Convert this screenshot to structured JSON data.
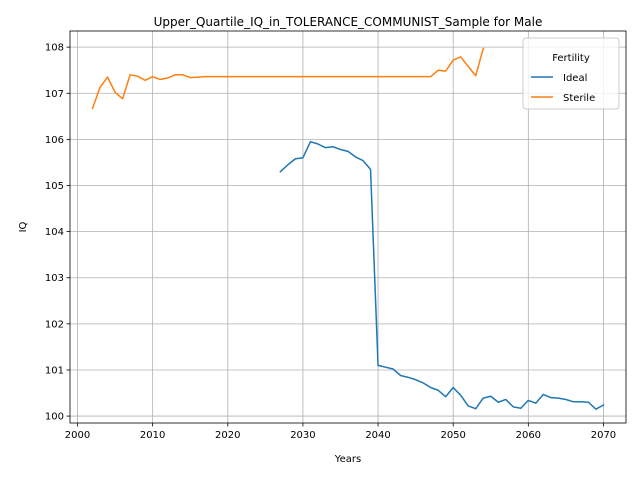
{
  "chart_data": {
    "type": "line",
    "title": "Upper_Quartile_IQ_in_TOLERANCE_COMMUNIST_Sample for Male",
    "xlabel": "Years",
    "ylabel": "IQ",
    "xlim": [
      1999,
      2073
    ],
    "ylim": [
      99.85,
      108.35
    ],
    "xticks": [
      2000,
      2010,
      2020,
      2030,
      2040,
      2050,
      2060,
      2070
    ],
    "yticks": [
      100,
      101,
      102,
      103,
      104,
      105,
      106,
      107,
      108
    ],
    "grid": true,
    "legend": {
      "title": "Fertility",
      "placement": "top-right"
    },
    "series": [
      {
        "name": "Ideal",
        "color": "#1f77b4",
        "x": [
          2027,
          2028,
          2029,
          2030,
          2031,
          2032,
          2033,
          2034,
          2035,
          2036,
          2037,
          2038,
          2039,
          2040,
          2041,
          2042,
          2043,
          2044,
          2045,
          2046,
          2047,
          2048,
          2049,
          2050,
          2051,
          2052,
          2053,
          2054,
          2055,
          2056,
          2057,
          2058,
          2059,
          2060,
          2061,
          2062,
          2063,
          2064,
          2065,
          2066,
          2067,
          2068,
          2069,
          2070
        ],
        "y": [
          105.3,
          105.45,
          105.58,
          105.6,
          105.95,
          105.9,
          105.82,
          105.84,
          105.78,
          105.74,
          105.62,
          105.54,
          105.35,
          101.1,
          101.06,
          101.02,
          100.88,
          100.84,
          100.79,
          100.72,
          100.62,
          100.56,
          100.42,
          100.62,
          100.45,
          100.22,
          100.16,
          100.39,
          100.43,
          100.3,
          100.36,
          100.2,
          100.17,
          100.34,
          100.28,
          100.47,
          100.4,
          100.39,
          100.36,
          100.31,
          100.31,
          100.3,
          100.15,
          100.24
        ]
      },
      {
        "name": "Sterile",
        "color": "#ff7f0e",
        "x": [
          2002,
          2003,
          2004,
          2005,
          2006,
          2007,
          2008,
          2009,
          2010,
          2011,
          2012,
          2013,
          2014,
          2015,
          2016,
          2017,
          2018,
          2019,
          2020,
          2021,
          2022,
          2023,
          2024,
          2025,
          2026,
          2027,
          2028,
          2029,
          2030,
          2031,
          2032,
          2033,
          2034,
          2035,
          2036,
          2037,
          2038,
          2039,
          2040,
          2041,
          2042,
          2043,
          2044,
          2045,
          2046,
          2047,
          2048,
          2049,
          2050,
          2051,
          2052,
          2053,
          2054
        ],
        "y": [
          106.67,
          107.13,
          107.35,
          107.02,
          106.88,
          107.4,
          107.37,
          107.28,
          107.36,
          107.3,
          107.33,
          107.4,
          107.4,
          107.34,
          107.35,
          107.36,
          107.36,
          107.36,
          107.36,
          107.36,
          107.36,
          107.36,
          107.36,
          107.36,
          107.36,
          107.36,
          107.36,
          107.36,
          107.36,
          107.36,
          107.36,
          107.36,
          107.36,
          107.36,
          107.36,
          107.36,
          107.36,
          107.36,
          107.36,
          107.36,
          107.36,
          107.36,
          107.36,
          107.36,
          107.36,
          107.36,
          107.5,
          107.48,
          107.72,
          107.79,
          107.58,
          107.38,
          107.97
        ]
      }
    ]
  }
}
